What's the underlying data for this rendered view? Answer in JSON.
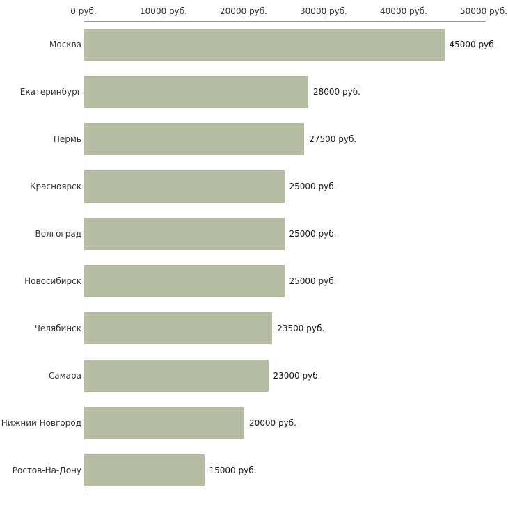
{
  "chart_data": {
    "type": "bar",
    "orientation": "horizontal",
    "categories": [
      "Москва",
      "Екатеринбург",
      "Пермь",
      "Красноярск",
      "Волгоград",
      "Новосибирск",
      "Челябинск",
      "Самара",
      "Нижний Новгород",
      "Ростов-На-Дону"
    ],
    "values": [
      45000,
      28000,
      27500,
      25000,
      25000,
      25000,
      23500,
      23000,
      20000,
      15000
    ],
    "value_labels": [
      "45000 руб.",
      "28000 руб.",
      "27500 руб.",
      "25000 руб.",
      "25000 руб.",
      "25000 руб.",
      "23500 руб.",
      "23000 руб.",
      "20000 руб.",
      "15000 руб."
    ],
    "x_ticks": [
      0,
      10000,
      20000,
      30000,
      40000,
      50000
    ],
    "x_tick_labels": [
      "0 руб.",
      "10000 руб.",
      "20000 руб.",
      "30000 руб.",
      "40000 руб.",
      "50000 руб."
    ],
    "xlim": [
      0,
      50000
    ],
    "grid": false,
    "legend": "none",
    "bar_color": "#b4bda2",
    "axis_color": "#999999",
    "text_color": "#333333",
    "value_text_color": "#1a1a1a",
    "background_color": "#ffffff"
  }
}
